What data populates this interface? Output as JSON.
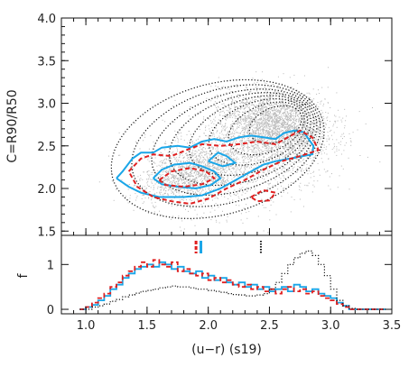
{
  "chart_data": [
    {
      "panel": "top",
      "type": "scatter",
      "xlim": [
        0.8,
        3.5
      ],
      "ylim": [
        1.45,
        4.0
      ],
      "ylabel": "C=R90/R50",
      "yticks": [
        "1.5",
        "2.0",
        "2.5",
        "3.0",
        "3.5",
        "4.0"
      ],
      "ytick_values": [
        1.5,
        2.0,
        2.5,
        3.0,
        3.5,
        4.0
      ],
      "colors": {
        "points": "#b8b8b8",
        "contour": "#111111",
        "blue": "#1aa6e8",
        "red": "#e02020"
      },
      "contour_center": [
        2.55,
        2.75
      ],
      "contour_levels": [
        {
          "rx": 0.95,
          "ry": 0.72,
          "rot": 38
        },
        {
          "rx": 0.85,
          "ry": 0.62,
          "rot": 38
        },
        {
          "rx": 0.75,
          "ry": 0.53,
          "rot": 38
        },
        {
          "rx": 0.66,
          "ry": 0.46,
          "rot": 38
        },
        {
          "rx": 0.56,
          "ry": 0.39,
          "rot": 40
        },
        {
          "rx": 0.46,
          "ry": 0.32,
          "rot": 42
        },
        {
          "rx": 0.36,
          "ry": 0.25,
          "rot": 45
        },
        {
          "rx": 0.25,
          "ry": 0.18,
          "rot": 48
        }
      ],
      "blue_contours": [
        [
          [
            1.25,
            2.12
          ],
          [
            1.3,
            2.2
          ],
          [
            1.38,
            2.35
          ],
          [
            1.45,
            2.42
          ],
          [
            1.55,
            2.42
          ],
          [
            1.62,
            2.48
          ],
          [
            1.75,
            2.5
          ],
          [
            1.85,
            2.48
          ],
          [
            1.95,
            2.55
          ],
          [
            2.05,
            2.58
          ],
          [
            2.15,
            2.55
          ],
          [
            2.25,
            2.6
          ],
          [
            2.35,
            2.62
          ],
          [
            2.45,
            2.6
          ],
          [
            2.55,
            2.58
          ],
          [
            2.62,
            2.65
          ],
          [
            2.7,
            2.68
          ],
          [
            2.78,
            2.66
          ],
          [
            2.86,
            2.5
          ],
          [
            2.85,
            2.4
          ],
          [
            2.7,
            2.36
          ],
          [
            2.55,
            2.32
          ],
          [
            2.45,
            2.28
          ],
          [
            2.35,
            2.2
          ],
          [
            2.2,
            2.08
          ],
          [
            2.1,
            2.0
          ],
          [
            1.95,
            1.92
          ],
          [
            1.8,
            1.9
          ],
          [
            1.6,
            1.9
          ],
          [
            1.45,
            1.95
          ],
          [
            1.35,
            2.02
          ],
          [
            1.25,
            2.12
          ]
        ],
        [
          [
            1.55,
            2.12
          ],
          [
            1.62,
            2.22
          ],
          [
            1.72,
            2.28
          ],
          [
            1.85,
            2.3
          ],
          [
            1.95,
            2.26
          ],
          [
            2.05,
            2.2
          ],
          [
            2.1,
            2.12
          ],
          [
            2.02,
            2.04
          ],
          [
            1.9,
            2.0
          ],
          [
            1.75,
            2.02
          ],
          [
            1.62,
            2.05
          ],
          [
            1.55,
            2.12
          ]
        ],
        [
          [
            2.0,
            2.32
          ],
          [
            2.08,
            2.42
          ],
          [
            2.15,
            2.38
          ],
          [
            2.22,
            2.3
          ],
          [
            2.12,
            2.26
          ],
          [
            2.0,
            2.32
          ]
        ]
      ],
      "red_contours": [
        [
          [
            1.35,
            2.2
          ],
          [
            1.45,
            2.35
          ],
          [
            1.55,
            2.4
          ],
          [
            1.7,
            2.38
          ],
          [
            1.82,
            2.45
          ],
          [
            1.95,
            2.52
          ],
          [
            2.1,
            2.5
          ],
          [
            2.25,
            2.52
          ],
          [
            2.4,
            2.55
          ],
          [
            2.55,
            2.52
          ],
          [
            2.65,
            2.6
          ],
          [
            2.75,
            2.68
          ],
          [
            2.85,
            2.6
          ],
          [
            2.9,
            2.45
          ],
          [
            2.75,
            2.38
          ],
          [
            2.6,
            2.32
          ],
          [
            2.45,
            2.22
          ],
          [
            2.3,
            2.1
          ],
          [
            2.15,
            2.0
          ],
          [
            2.0,
            1.88
          ],
          [
            1.85,
            1.82
          ],
          [
            1.7,
            1.85
          ],
          [
            1.55,
            1.9
          ],
          [
            1.42,
            2.02
          ],
          [
            1.35,
            2.2
          ]
        ],
        [
          [
            1.6,
            2.1
          ],
          [
            1.7,
            2.2
          ],
          [
            1.85,
            2.24
          ],
          [
            1.98,
            2.2
          ],
          [
            2.05,
            2.12
          ],
          [
            1.95,
            2.05
          ],
          [
            1.8,
            2.02
          ],
          [
            1.65,
            2.04
          ],
          [
            1.6,
            2.1
          ]
        ],
        [
          [
            2.35,
            1.9
          ],
          [
            2.45,
            1.98
          ],
          [
            2.55,
            1.95
          ],
          [
            2.5,
            1.86
          ],
          [
            2.4,
            1.85
          ],
          [
            2.35,
            1.9
          ]
        ]
      ]
    },
    {
      "panel": "bottom",
      "type": "histogram",
      "xlabel": "(u−r) (s19)",
      "ylabel": "f",
      "xlim": [
        0.8,
        3.5
      ],
      "ylim": [
        -0.1,
        1.65
      ],
      "xticks": [
        "1.0",
        "1.5",
        "2.0",
        "2.5",
        "3.0",
        "3.5"
      ],
      "xtick_values": [
        1.0,
        1.5,
        2.0,
        2.5,
        3.0,
        3.5
      ],
      "yticks": [
        "0",
        "1"
      ],
      "ytick_values": [
        0,
        1
      ],
      "bin_start": 0.95,
      "bin_width": 0.05,
      "series": [
        {
          "style": "solid",
          "color": "#1aa6e8",
          "values": [
            0.0,
            0.05,
            0.1,
            0.2,
            0.3,
            0.45,
            0.55,
            0.7,
            0.8,
            0.9,
            0.95,
            1.0,
            0.95,
            1.05,
            1.0,
            0.9,
            0.95,
            0.85,
            0.8,
            0.85,
            0.7,
            0.75,
            0.65,
            0.7,
            0.6,
            0.55,
            0.6,
            0.5,
            0.55,
            0.45,
            0.5,
            0.4,
            0.45,
            0.5,
            0.4,
            0.55,
            0.5,
            0.4,
            0.45,
            0.35,
            0.3,
            0.25,
            0.15,
            0.08,
            0.0,
            0.0,
            0.0,
            0.0,
            0.0,
            0.0
          ]
        },
        {
          "style": "dashed",
          "color": "#e02020",
          "values": [
            0.0,
            0.05,
            0.15,
            0.25,
            0.35,
            0.5,
            0.6,
            0.75,
            0.85,
            0.95,
            1.05,
            0.95,
            1.1,
            1.0,
            0.95,
            1.05,
            0.85,
            0.9,
            0.8,
            0.75,
            0.8,
            0.65,
            0.7,
            0.6,
            0.65,
            0.55,
            0.5,
            0.55,
            0.45,
            0.5,
            0.4,
            0.45,
            0.35,
            0.45,
            0.5,
            0.4,
            0.45,
            0.35,
            0.4,
            0.3,
            0.25,
            0.2,
            0.12,
            0.05,
            0.0,
            0.0,
            0.0,
            0.0,
            0.0,
            0.0
          ]
        },
        {
          "style": "dotted",
          "color": "#111111",
          "values": [
            0.0,
            0.0,
            0.05,
            0.08,
            0.12,
            0.18,
            0.22,
            0.28,
            0.32,
            0.36,
            0.4,
            0.42,
            0.45,
            0.48,
            0.5,
            0.52,
            0.5,
            0.5,
            0.48,
            0.45,
            0.45,
            0.42,
            0.4,
            0.38,
            0.35,
            0.33,
            0.32,
            0.3,
            0.3,
            0.32,
            0.35,
            0.45,
            0.6,
            0.8,
            1.0,
            1.15,
            1.25,
            1.3,
            1.2,
            1.0,
            0.75,
            0.45,
            0.2,
            0.08,
            0.02,
            0.0,
            0.0,
            0.0,
            0.0,
            0.0
          ]
        }
      ],
      "markers": [
        {
          "x": 1.9,
          "color": "#e02020",
          "style": "dashed"
        },
        {
          "x": 1.94,
          "color": "#1aa6e8",
          "style": "solid"
        },
        {
          "x": 2.43,
          "color": "#111111",
          "style": "dotted"
        }
      ]
    }
  ]
}
